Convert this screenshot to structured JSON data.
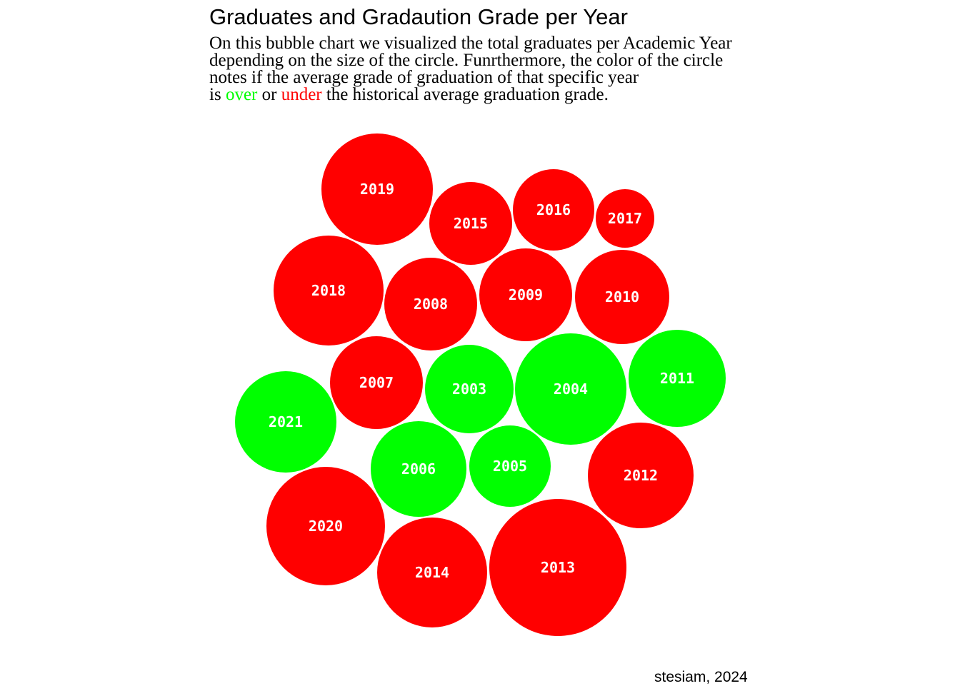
{
  "chart_data": {
    "type": "bubble",
    "title": "Graduates and Gradaution Grade per Year",
    "subtitle": {
      "lines": [
        [
          {
            "text": "On this bubble chart we visualized the total graduates per Academic Year",
            "color": "#000000"
          }
        ],
        [
          {
            "text": "depending on the size of the circle. Funrthermore, the color of the circle",
            "color": "#000000"
          }
        ],
        [
          {
            "text": "notes if the average grade of graduation of that specific year",
            "color": "#000000"
          }
        ],
        [
          {
            "text": "is ",
            "color": "#000000"
          },
          {
            "text": "over",
            "color": "#00ff00"
          },
          {
            "text": " or ",
            "color": "#000000"
          },
          {
            "text": "under",
            "color": "#ff0000"
          },
          {
            "text": " the historical average graduation grade.",
            "color": "#000000"
          }
        ]
      ]
    },
    "caption": "stesiam, 2024",
    "legend": {
      "over": {
        "label": "over",
        "color": "#00ff00"
      },
      "under": {
        "label": "under",
        "color": "#ff0000"
      }
    },
    "bubbles": [
      {
        "year": "2019",
        "relative_size": 78,
        "status": "under"
      },
      {
        "year": "2015",
        "relative_size": 58,
        "status": "under"
      },
      {
        "year": "2016",
        "relative_size": 57,
        "status": "under"
      },
      {
        "year": "2017",
        "relative_size": 41,
        "status": "under"
      },
      {
        "year": "2018",
        "relative_size": 77,
        "status": "under"
      },
      {
        "year": "2008",
        "relative_size": 65,
        "status": "under"
      },
      {
        "year": "2009",
        "relative_size": 65,
        "status": "under"
      },
      {
        "year": "2010",
        "relative_size": 66,
        "status": "under"
      },
      {
        "year": "2007",
        "relative_size": 65,
        "status": "under"
      },
      {
        "year": "2003",
        "relative_size": 62,
        "status": "over"
      },
      {
        "year": "2004",
        "relative_size": 78,
        "status": "over"
      },
      {
        "year": "2011",
        "relative_size": 68,
        "status": "over"
      },
      {
        "year": "2021",
        "relative_size": 71,
        "status": "over"
      },
      {
        "year": "2006",
        "relative_size": 67,
        "status": "over"
      },
      {
        "year": "2005",
        "relative_size": 57,
        "status": "over"
      },
      {
        "year": "2012",
        "relative_size": 74,
        "status": "under"
      },
      {
        "year": "2020",
        "relative_size": 83,
        "status": "under"
      },
      {
        "year": "2014",
        "relative_size": 77,
        "status": "under"
      },
      {
        "year": "2013",
        "relative_size": 96,
        "status": "under"
      }
    ]
  }
}
